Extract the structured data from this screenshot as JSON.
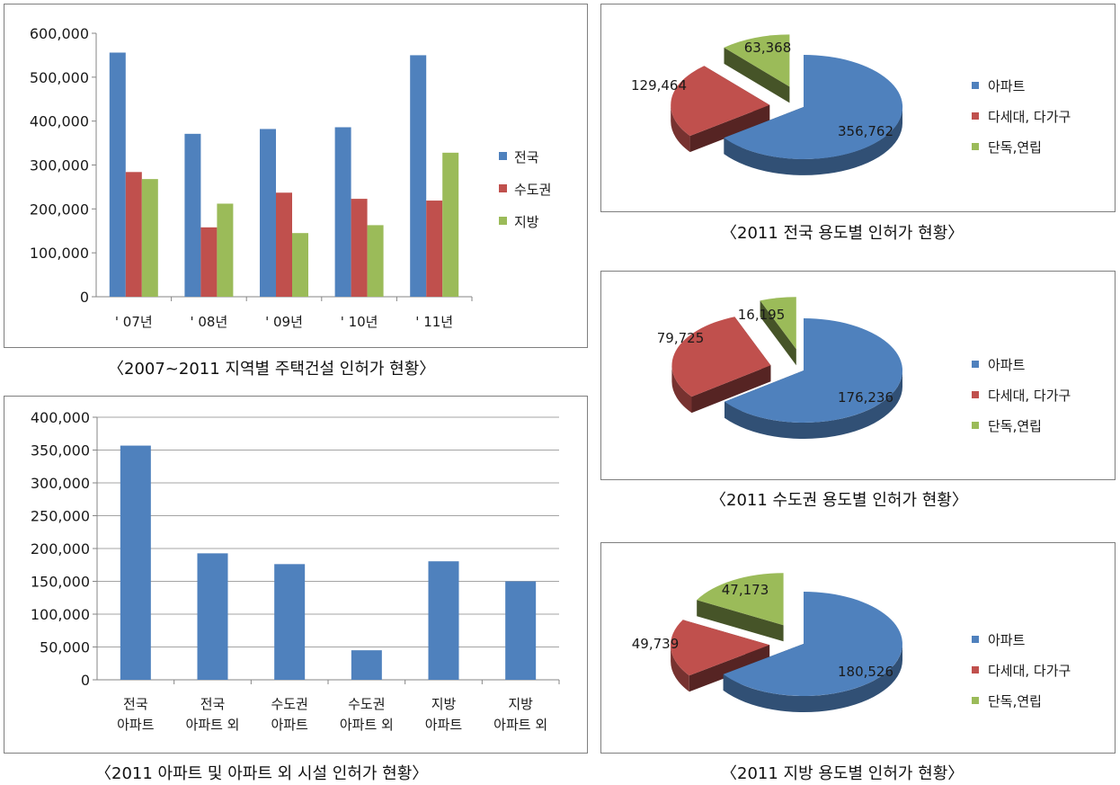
{
  "colors": {
    "blue": "#4f81bd",
    "red": "#c0504d",
    "green": "#9bbb59"
  },
  "chart_data": [
    {
      "id": "regional",
      "type": "bar",
      "caption": "〈2007~2011 지역별 주택건설 인허가 현황〉",
      "categories": [
        "' 07년",
        "' 08년",
        "' 09년",
        "' 10년",
        "' 11년"
      ],
      "series": [
        {
          "name": "전국",
          "color": "#4f81bd",
          "values": [
            556000,
            371000,
            382000,
            386000,
            550000
          ]
        },
        {
          "name": "수도권",
          "color": "#c0504d",
          "values": [
            284000,
            158000,
            237000,
            223000,
            219000
          ]
        },
        {
          "name": "지방",
          "color": "#9bbb59",
          "values": [
            268000,
            212000,
            145000,
            163000,
            328000
          ]
        }
      ],
      "yticks": [
        "0",
        "100,000",
        "200,000",
        "300,000",
        "400,000",
        "500,000",
        "600,000"
      ],
      "ylim": [
        0,
        600000
      ],
      "grid": false,
      "legend": "right"
    },
    {
      "id": "apt",
      "type": "bar",
      "caption": "〈2011 아파트 및 아파트 외 시설 인허가 현황〉",
      "categories": [
        [
          "전국",
          "아파트"
        ],
        [
          "전국",
          "아파트 외"
        ],
        [
          "수도권",
          "아파트"
        ],
        [
          "수도권",
          "아파트 외"
        ],
        [
          "지방",
          "아파트"
        ],
        [
          "지방",
          "아파트 외"
        ]
      ],
      "series": [
        {
          "color": "#4f81bd",
          "values": [
            356762,
            192659,
            176236,
            45000,
            180526,
            150000
          ]
        }
      ],
      "yticks": [
        "0",
        "50,000",
        "100,000",
        "150,000",
        "200,000",
        "250,000",
        "300,000",
        "350,000",
        "400,000"
      ],
      "ylim": [
        0,
        400000
      ],
      "grid": true,
      "legend": "none"
    },
    {
      "id": "pie1",
      "type": "pie",
      "caption": "〈2011 전국 용도별 인허가 현황〉",
      "labels": [
        "아파트",
        "다세대, 다가구",
        "단독,연립"
      ],
      "values": [
        356762,
        129464,
        63368
      ],
      "value_labels": [
        "356,762",
        "129,464",
        "63,368"
      ],
      "colors": [
        "#4f81bd",
        "#c0504d",
        "#9bbb59"
      ],
      "legend": "right"
    },
    {
      "id": "pie2",
      "type": "pie",
      "caption": "〈2011 수도권 용도별 인허가 현황〉",
      "labels": [
        "아파트",
        "다세대, 다가구",
        "단독,연립"
      ],
      "values": [
        176236,
        79725,
        16195
      ],
      "value_labels": [
        "176,236",
        "79,725",
        "16,195"
      ],
      "colors": [
        "#4f81bd",
        "#c0504d",
        "#9bbb59"
      ],
      "legend": "right"
    },
    {
      "id": "pie3",
      "type": "pie",
      "caption": "〈2011 지방 용도별 인허가 현황〉",
      "labels": [
        "아파트",
        "다세대, 다가구",
        "단독,연립"
      ],
      "values": [
        180526,
        49739,
        47173
      ],
      "value_labels": [
        "180,526",
        "49,739",
        "47,173"
      ],
      "colors": [
        "#4f81bd",
        "#c0504d",
        "#9bbb59"
      ],
      "legend": "right"
    }
  ]
}
